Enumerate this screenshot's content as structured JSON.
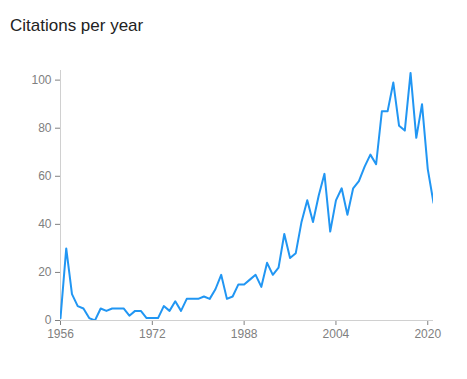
{
  "chart_data": {
    "type": "line",
    "title": "Citations per year",
    "x": [
      1956,
      1957,
      1958,
      1959,
      1960,
      1961,
      1962,
      1963,
      1964,
      1965,
      1966,
      1967,
      1968,
      1969,
      1970,
      1971,
      1972,
      1973,
      1974,
      1975,
      1976,
      1977,
      1978,
      1979,
      1980,
      1981,
      1982,
      1983,
      1984,
      1985,
      1986,
      1987,
      1988,
      1989,
      1990,
      1991,
      1992,
      1993,
      1994,
      1995,
      1996,
      1997,
      1998,
      1999,
      2000,
      2001,
      2002,
      2003,
      2004,
      2005,
      2006,
      2007,
      2008,
      2009,
      2010,
      2011,
      2012,
      2013,
      2014,
      2015,
      2016,
      2017,
      2018,
      2019,
      2020,
      2021
    ],
    "values": [
      1,
      30,
      11,
      6,
      5,
      1,
      0,
      5,
      4,
      5,
      5,
      5,
      2,
      4,
      4,
      1,
      1,
      1,
      6,
      4,
      8,
      4,
      9,
      9,
      9,
      10,
      9,
      13,
      19,
      9,
      10,
      15,
      15,
      17,
      19,
      14,
      24,
      19,
      22,
      36,
      26,
      28,
      41,
      50,
      41,
      52,
      61,
      37,
      50,
      55,
      44,
      55,
      58,
      64,
      69,
      65,
      87,
      87,
      99,
      81,
      79,
      103,
      76,
      90,
      63,
      49
    ],
    "color": "#2196f3",
    "xlim": [
      1956,
      2021
    ],
    "xticks": [
      1956,
      1972,
      1988,
      2004,
      2020
    ],
    "ylim": [
      0,
      104
    ],
    "yticks": [
      0,
      20,
      40,
      60,
      80,
      100
    ],
    "grid": false
  }
}
